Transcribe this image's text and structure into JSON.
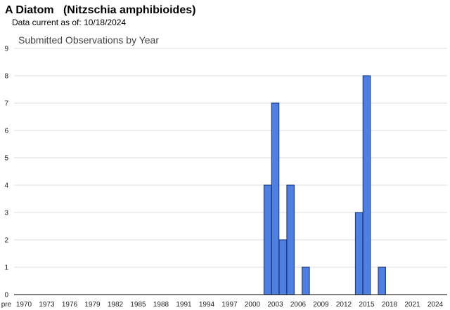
{
  "header": {
    "title": "A Diatom   (Nitzschia amphibioides)",
    "data_current_label": "Data current as of:",
    "data_current_date": "10/18/2024"
  },
  "chart_data": {
    "type": "bar",
    "title": "Submitted Observations by Year",
    "xlabel": "",
    "ylabel": "",
    "ylim": [
      0,
      9
    ],
    "yticks": [
      0,
      1,
      2,
      3,
      4,
      5,
      6,
      7,
      8,
      9
    ],
    "grid": true,
    "bar_color": "#4f7fe0",
    "bar_edge_color": "#1f3f8a",
    "x_tick_labels": [
      "pre",
      "1970",
      "1973",
      "1976",
      "1979",
      "1982",
      "1985",
      "1988",
      "1991",
      "1994",
      "1997",
      "2000",
      "2003",
      "2006",
      "2009",
      "2012",
      "2015",
      "2018",
      "2021",
      "2024"
    ],
    "categories": [
      "2002",
      "2003",
      "2004",
      "2005",
      "2007",
      "2014",
      "2015",
      "2017"
    ],
    "values": [
      4,
      7,
      2,
      4,
      1,
      3,
      8,
      1
    ]
  }
}
